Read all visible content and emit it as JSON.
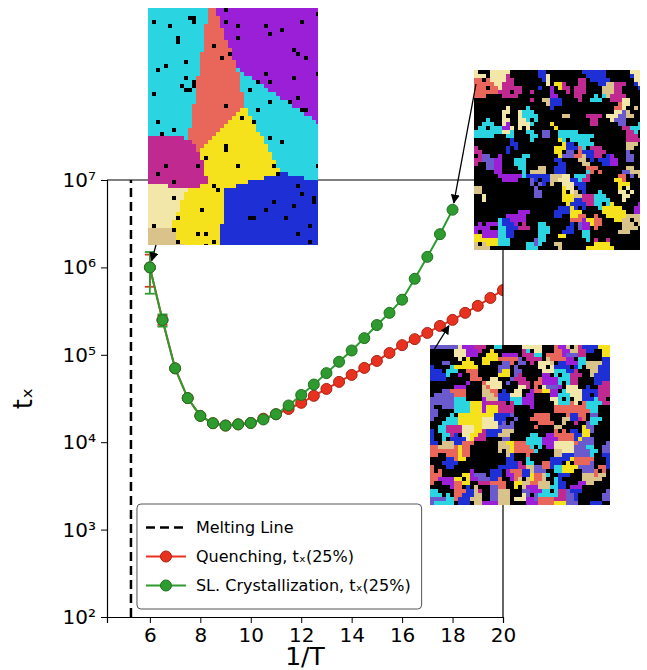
{
  "chart_data": {
    "type": "line",
    "x_label": "1/T",
    "y_label": "tₓ",
    "x": [
      6,
      6.5,
      7,
      7.5,
      8,
      8.5,
      9,
      9.5,
      10,
      10.5,
      11,
      11.5,
      12,
      12.5,
      13,
      13.5,
      14,
      14.5,
      15,
      15.5,
      16,
      16.5,
      17,
      17.5,
      18,
      18.5,
      19,
      19.5,
      20
    ],
    "xlim": [
      4.3,
      20
    ],
    "xticks": [
      6,
      8,
      10,
      12,
      14,
      16,
      18,
      20
    ],
    "ylim": [
      100,
      10000000
    ],
    "yticks": [
      {
        "value": 100,
        "label": "10²"
      },
      {
        "value": 1000,
        "label": "10³"
      },
      {
        "value": 10000,
        "label": "10⁴"
      },
      {
        "value": 100000,
        "label": "10⁵"
      },
      {
        "value": 1000000,
        "label": "10⁶"
      },
      {
        "value": 10000000,
        "label": "10⁷"
      }
    ],
    "log": "y",
    "grid": false,
    "legend": "lower left",
    "vlines": [
      {
        "name": "Melting Line",
        "x": 5.25,
        "color": "#000000",
        "line_style": "dashed"
      }
    ],
    "series": [
      {
        "name": "Quenching, tₓ(25%)",
        "color": "#e8321f",
        "marker": "circle",
        "line_style": "solid",
        "values": [
          1000000,
          250000,
          70000,
          32000,
          20000,
          16500,
          15500,
          16000,
          16600,
          18600,
          20900,
          24000,
          28200,
          33900,
          40700,
          49000,
          58900,
          70800,
          85100,
          105000,
          129000,
          151000,
          178000,
          214000,
          251000,
          302000,
          363000,
          447000,
          550000
        ],
        "errors": [
          400000,
          30000,
          null,
          null,
          null,
          null,
          null,
          null,
          null,
          null,
          null,
          null,
          null,
          null,
          null,
          null,
          null,
          null,
          null,
          null,
          null,
          null,
          null,
          null,
          null,
          null,
          null,
          null,
          null
        ]
      },
      {
        "name": "SL. Crystallization, tₓ(25%)",
        "color": "#2e9b2e",
        "marker": "circle",
        "line_style": "solid",
        "values": [
          1000000,
          250000,
          70000,
          32000,
          20000,
          16500,
          15500,
          16000,
          16600,
          18200,
          20900,
          26300,
          34700,
          45700,
          61700,
          83200,
          112000,
          155000,
          219000,
          302000,
          427000,
          741000,
          1320000,
          2400000,
          4570000,
          null,
          null,
          null,
          null
        ],
        "errors": [
          500000,
          40000,
          null,
          null,
          null,
          null,
          null,
          null,
          null,
          null,
          null,
          null,
          null,
          null,
          null,
          null,
          null,
          null,
          null,
          null,
          null,
          null,
          null,
          null,
          null,
          null,
          null,
          null,
          null
        ]
      }
    ]
  }
}
